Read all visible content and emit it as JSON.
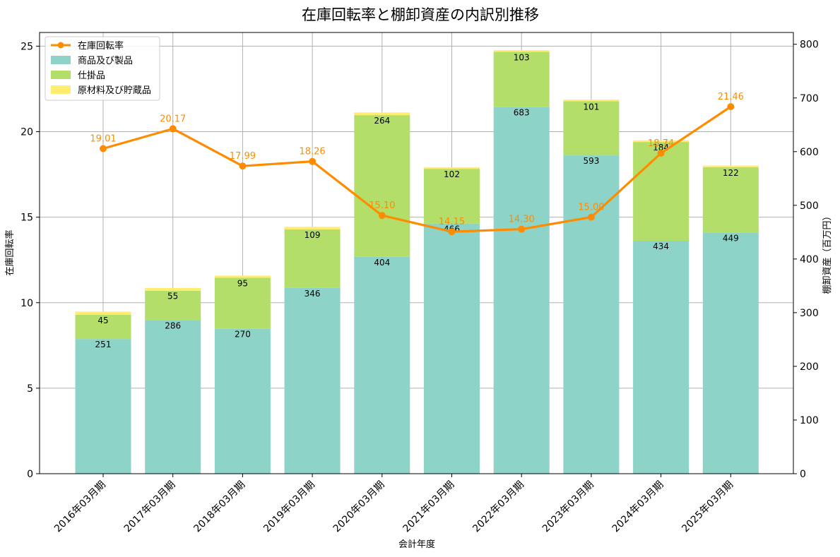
{
  "chart_data": {
    "type": "bar",
    "title": "在庫回転率と棚卸資産の内訳別推移",
    "xlabel": "会計年度",
    "ylabel_left": "在庫回転率",
    "ylabel_right": "棚卸資産（百万円）",
    "categories": [
      "2016年03月期",
      "2017年03月期",
      "2018年03月期",
      "2019年03月期",
      "2020年03月期",
      "2021年03月期",
      "2022年03月期",
      "2023年03月期",
      "2024年03月期",
      "2025年03月期"
    ],
    "bar_series": [
      {
        "name": "商品及び製品",
        "color": "#8dd3c7",
        "values": [
          251,
          286,
          270,
          346,
          404,
          466,
          683,
          593,
          434,
          449
        ]
      },
      {
        "name": "仕掛品",
        "color": "#b3de69",
        "values": [
          45,
          55,
          95,
          109,
          264,
          102,
          103,
          101,
          184,
          122
        ]
      },
      {
        "name": "原材料及び貯蔵品",
        "color": "#ffed6f",
        "values": [
          6,
          5,
          4,
          5,
          5,
          3,
          3,
          3,
          3,
          3
        ]
      }
    ],
    "line_series": {
      "name": "在庫回転率",
      "color": "#ff8c00",
      "values": [
        19.01,
        20.17,
        17.99,
        18.26,
        15.1,
        14.15,
        14.3,
        15.0,
        18.74,
        21.46
      ]
    },
    "ylim_left": [
      0,
      25.8
    ],
    "yticks_left": [
      0,
      5,
      10,
      15,
      20,
      25
    ],
    "ylim_right": [
      0,
      822
    ],
    "yticks_right": [
      0,
      100,
      200,
      300,
      400,
      500,
      600,
      700,
      800
    ],
    "grid": true,
    "legend_position": "top-left"
  }
}
